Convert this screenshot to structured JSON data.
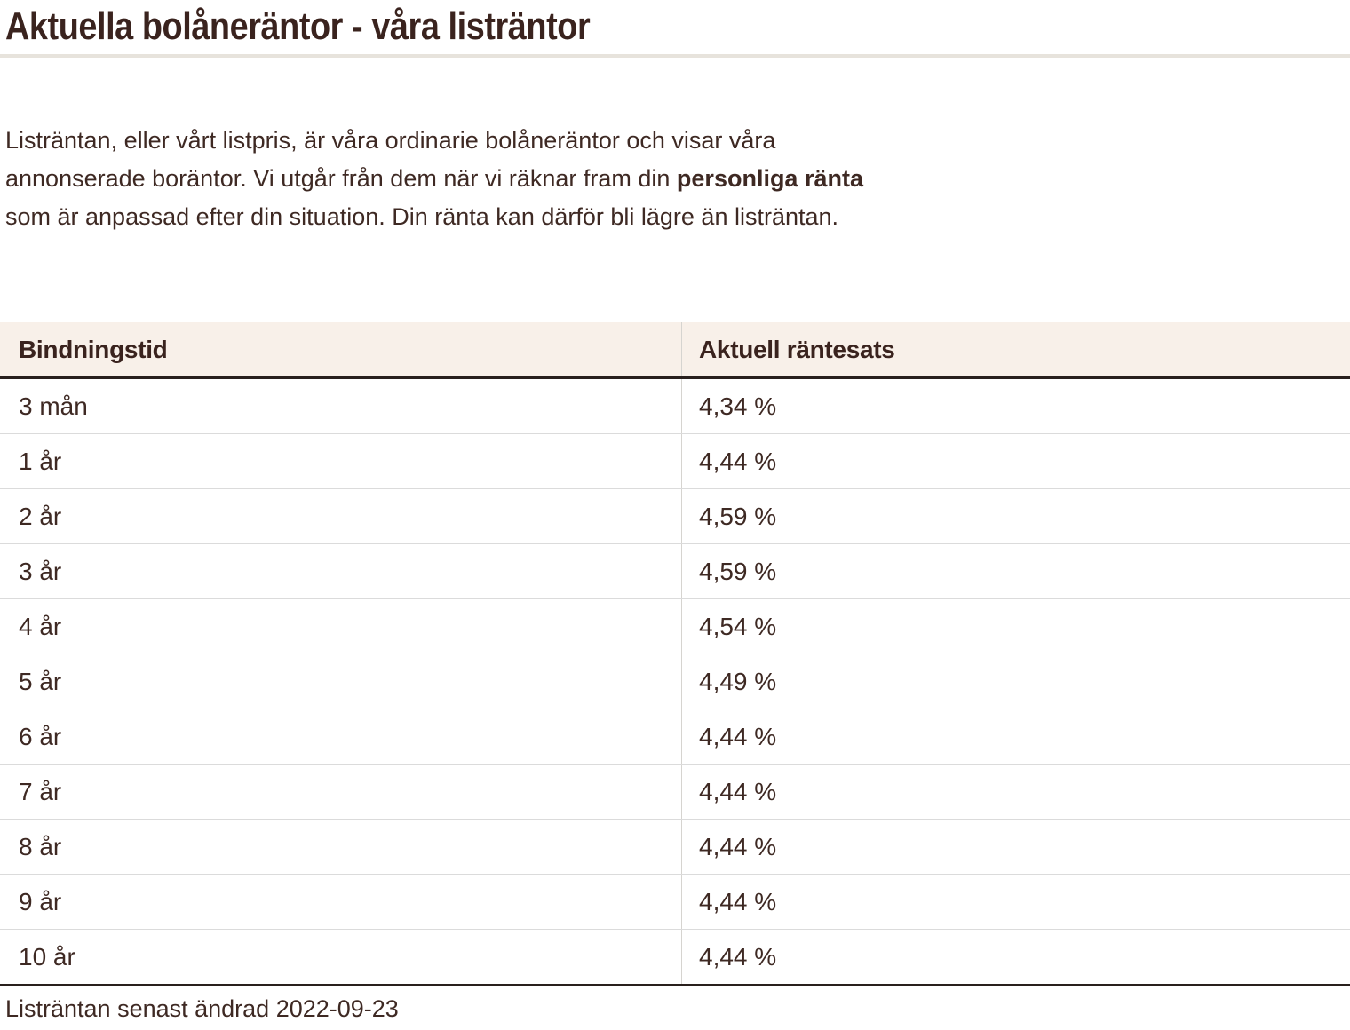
{
  "page": {
    "title": "Aktuella bolåneräntor - våra listräntor"
  },
  "intro": {
    "line1": "Listräntan, eller vårt listpris, är våra ordinarie bolåneräntor och visar våra",
    "line2_before": "annonserade boräntor. Vi utgår från dem när vi räknar fram din ",
    "line2_bold": "personliga ränta",
    "line3": "som är anpassad efter din situation. Din ränta kan därför bli lägre än listräntan."
  },
  "table": {
    "headers": [
      "Bindningstid",
      "Aktuell räntesats"
    ],
    "rows": [
      {
        "term": "3 mån",
        "rate": "4,34 %"
      },
      {
        "term": "1 år",
        "rate": "4,44 %"
      },
      {
        "term": "2 år",
        "rate": "4,59 %"
      },
      {
        "term": "3 år",
        "rate": "4,59 %"
      },
      {
        "term": "4 år",
        "rate": "4,54 %"
      },
      {
        "term": "5 år",
        "rate": "4,49 %"
      },
      {
        "term": "6 år",
        "rate": "4,44 %"
      },
      {
        "term": "7 år",
        "rate": "4,44 %"
      },
      {
        "term": "8 år",
        "rate": "4,44 %"
      },
      {
        "term": "9 år",
        "rate": "4,44 %"
      },
      {
        "term": "10 år",
        "rate": "4,44 %"
      }
    ],
    "footnote": "Listräntan senast ändrad 2022-09-23"
  },
  "colors": {
    "heading_text": "#3A231E",
    "body_text": "#3E2923",
    "table_header_bg": "#F8F0E9",
    "dark_border": "#29201D",
    "row_separator": "#DBDBDB",
    "column_divider": "#D6D4D0",
    "title_divider": "#E7E3DC",
    "page_bg": "#FFFFFF"
  }
}
